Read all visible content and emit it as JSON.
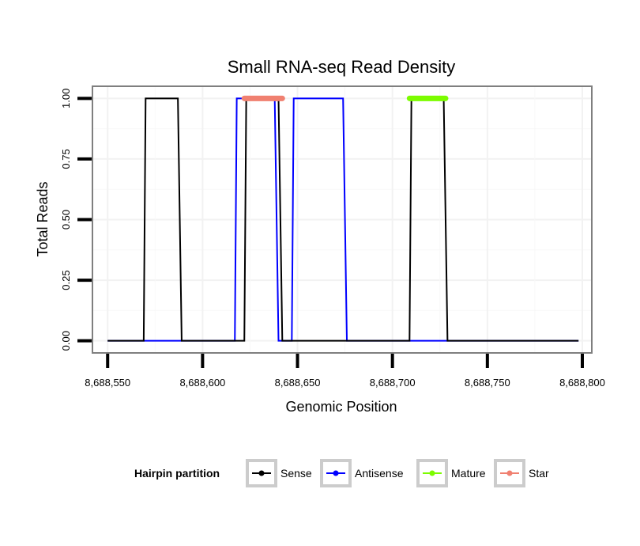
{
  "chart_data": {
    "type": "line",
    "title": "Small RNA-seq Read Density",
    "xlabel": "Genomic Position",
    "ylabel": "Total Reads",
    "xlim": [
      8688542,
      8688805
    ],
    "ylim": [
      -0.05,
      1.05
    ],
    "x_ticks": [
      8688550,
      8688600,
      8688650,
      8688700,
      8688750,
      8688800
    ],
    "x_tick_labels": [
      "8,688,550",
      "8,688,600",
      "8,688,650",
      "8,688,700",
      "8,688,750",
      "8,688,800"
    ],
    "y_ticks": [
      0,
      0.25,
      0.5,
      0.75,
      1
    ],
    "y_tick_labels": [
      "0.00",
      "0.25",
      "0.50",
      "0.75",
      "1.00"
    ],
    "legend": {
      "title": "Hairpin partition",
      "position": "bottom"
    },
    "series": [
      {
        "name": "Sense",
        "color": "#000000",
        "kind": "line",
        "x": [
          8688550,
          8688569,
          8688570,
          8688587,
          8688589,
          8688622,
          8688623,
          8688640,
          8688642,
          8688645,
          8688709,
          8688710,
          8688727,
          8688729,
          8688798
        ],
        "y": [
          0,
          0,
          1,
          1,
          0,
          0,
          1,
          1,
          0,
          0,
          0,
          1,
          1,
          0,
          0
        ]
      },
      {
        "name": "Antisense",
        "color": "#0000ff",
        "kind": "line",
        "x": [
          8688550,
          8688617,
          8688618,
          8688638,
          8688640,
          8688647,
          8688648,
          8688674,
          8688676,
          8688798
        ],
        "y": [
          0,
          0,
          1,
          1,
          0,
          0,
          1,
          1,
          0,
          0
        ]
      },
      {
        "name": "Mature",
        "color": "#7cfc00",
        "kind": "bar",
        "x": [
          8688709,
          8688728
        ],
        "y": [
          1,
          1
        ]
      },
      {
        "name": "Star",
        "color": "#f08070",
        "kind": "bar",
        "x": [
          8688622,
          8688642
        ],
        "y": [
          1,
          1
        ]
      }
    ]
  }
}
